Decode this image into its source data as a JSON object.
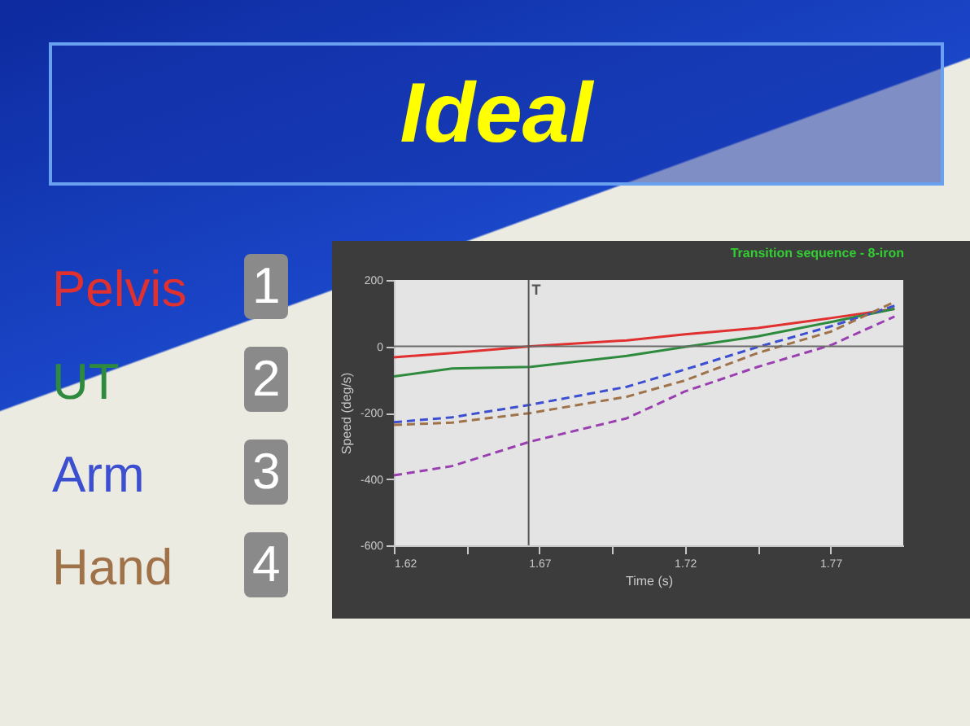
{
  "chart_data": {
    "type": "line",
    "title": "Ideal",
    "subtitle": "Transition sequence - 8-iron",
    "xlabel": "Time (s)",
    "ylabel": "Speed (deg/s)",
    "annotations": [
      "1",
      "2",
      "3",
      "4"
    ],
    "x": [
      1.62,
      1.64,
      1.667,
      1.7,
      1.72,
      1.745,
      1.77,
      1.792
    ],
    "series": [
      {
        "name": "Pelvis",
        "color": "#e03030",
        "line_style": "solid",
        "values": [
          -33,
          -20,
          0,
          18,
          36,
          55,
          85,
          113
        ]
      },
      {
        "name": "UT",
        "color": "#2e8b3e",
        "line_style": "solid",
        "values": [
          -91,
          -67,
          -62,
          -29,
          -2,
          30,
          73,
          113
        ]
      },
      {
        "name": "Arm",
        "color": "#3b4fd0",
        "line_style": "dashed",
        "values": [
          -229,
          -214,
          -176,
          -122,
          -70,
          -2,
          60,
          122
        ]
      },
      {
        "name": "Hand",
        "color": "#a0724a",
        "line_style": "dashed",
        "values": [
          -237,
          -230,
          -201,
          -152,
          -103,
          -20,
          44,
          134
        ]
      },
      {
        "color": "#9a3fb0",
        "line_style": "dashed",
        "values": [
          -389,
          -361,
          -287,
          -217,
          -136,
          -62,
          3,
          90
        ]
      }
    ],
    "xlim": [
      1.62,
      1.795
    ],
    "xticks": [
      {
        "value": 1.62,
        "label": "1.62"
      },
      {
        "value": 1.645,
        "label": null
      },
      {
        "value": 1.67,
        "label": "1.67"
      },
      {
        "value": 1.695,
        "label": null
      },
      {
        "value": 1.72,
        "label": "1.72"
      },
      {
        "value": 1.745,
        "label": null
      },
      {
        "value": 1.77,
        "label": "1.77"
      }
    ],
    "ylim": [
      -600,
      200
    ],
    "yticks": [
      -600,
      -400,
      -200,
      0,
      200
    ],
    "ref_lines": [
      {
        "axis": "y",
        "value": 0,
        "color": "#6a6a6a"
      },
      {
        "axis": "x",
        "value": 1.6663,
        "label": "T",
        "color": "#555555"
      }
    ],
    "grid": false,
    "legend": "left"
  }
}
